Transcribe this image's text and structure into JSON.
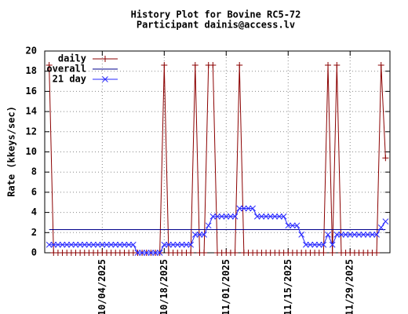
{
  "chart_data": {
    "type": "line",
    "title": "History Plot for Bovine RC5-72",
    "subtitle": "Participant dainis@access.lv",
    "y_label": "Rate (kkeys/sec)",
    "x": [
      "2025-09-22",
      "2025-09-23",
      "2025-09-24",
      "2025-09-25",
      "2025-09-26",
      "2025-09-27",
      "2025-09-28",
      "2025-09-29",
      "2025-09-30",
      "2025-10-01",
      "2025-10-02",
      "2025-10-03",
      "2025-10-04",
      "2025-10-05",
      "2025-10-06",
      "2025-10-07",
      "2025-10-08",
      "2025-10-09",
      "2025-10-10",
      "2025-10-11",
      "2025-10-12",
      "2025-10-13",
      "2025-10-14",
      "2025-10-15",
      "2025-10-16",
      "2025-10-17",
      "2025-10-18",
      "2025-10-19",
      "2025-10-20",
      "2025-10-21",
      "2025-10-22",
      "2025-10-23",
      "2025-10-24",
      "2025-10-25",
      "2025-10-26",
      "2025-10-27",
      "2025-10-28",
      "2025-10-29",
      "2025-10-30",
      "2025-10-31",
      "2025-11-01",
      "2025-11-02",
      "2025-11-03",
      "2025-11-04",
      "2025-11-05",
      "2025-11-06",
      "2025-11-07",
      "2025-11-08",
      "2025-11-09",
      "2025-11-10",
      "2025-11-11",
      "2025-11-12",
      "2025-11-13",
      "2025-11-14",
      "2025-11-15",
      "2025-11-16",
      "2025-11-17",
      "2025-11-18",
      "2025-11-19",
      "2025-11-20",
      "2025-11-21",
      "2025-11-22",
      "2025-11-23",
      "2025-11-24",
      "2025-11-25",
      "2025-11-26",
      "2025-11-27",
      "2025-11-28",
      "2025-11-29",
      "2025-11-30",
      "2025-12-01",
      "2025-12-02",
      "2025-12-03",
      "2025-12-04",
      "2025-12-05",
      "2025-12-06",
      "2025-12-07"
    ],
    "series": [
      {
        "name": "daily",
        "color": "#8b0000",
        "marker": "plus",
        "values": [
          18.6,
          0,
          0,
          0,
          0,
          0,
          0,
          0,
          0,
          0,
          0,
          0,
          0,
          0,
          0,
          0,
          0,
          0,
          0,
          0,
          0,
          0,
          0,
          0,
          0,
          0,
          18.6,
          0,
          0,
          0,
          0,
          0,
          0,
          18.6,
          0,
          0,
          18.6,
          18.6,
          0,
          0,
          0,
          0,
          0,
          18.6,
          0,
          0,
          0,
          0,
          0,
          0,
          0,
          0,
          0,
          0,
          0,
          0,
          0,
          0,
          0,
          0,
          0,
          0,
          0,
          18.6,
          0,
          18.6,
          0,
          0,
          0,
          0,
          0,
          0,
          0,
          0,
          0,
          18.6,
          9.4
        ]
      },
      {
        "name": "overall",
        "color": "#00008b",
        "marker": "none",
        "values": [
          2.3,
          2.3,
          2.3,
          2.3,
          2.3,
          2.3,
          2.3,
          2.3,
          2.3,
          2.3,
          2.3,
          2.3,
          2.3,
          2.3,
          2.3,
          2.3,
          2.3,
          2.3,
          2.3,
          2.3,
          2.3,
          2.3,
          2.3,
          2.3,
          2.3,
          2.3,
          2.3,
          2.3,
          2.3,
          2.3,
          2.3,
          2.3,
          2.3,
          2.3,
          2.3,
          2.3,
          2.3,
          2.3,
          2.3,
          2.3,
          2.3,
          2.3,
          2.3,
          2.3,
          2.3,
          2.3,
          2.3,
          2.3,
          2.3,
          2.3,
          2.3,
          2.3,
          2.3,
          2.3,
          2.3,
          2.3,
          2.3,
          2.3,
          2.3,
          2.3,
          2.3,
          2.3,
          2.3,
          2.3,
          2.3,
          2.3,
          2.3,
          2.3,
          2.3,
          2.3,
          2.3,
          2.3,
          2.3,
          2.3,
          2.3,
          2.3,
          2.3
        ]
      },
      {
        "name": "21 day",
        "color": "#2a2aff",
        "marker": "cross",
        "values": [
          0.8,
          0.8,
          0.8,
          0.8,
          0.8,
          0.8,
          0.8,
          0.8,
          0.8,
          0.8,
          0.8,
          0.8,
          0.8,
          0.8,
          0.8,
          0.8,
          0.8,
          0.8,
          0.8,
          0.8,
          0,
          0,
          0,
          0,
          0,
          0,
          0.8,
          0.8,
          0.8,
          0.8,
          0.8,
          0.8,
          0.8,
          1.8,
          1.8,
          1.8,
          2.7,
          3.6,
          3.6,
          3.6,
          3.6,
          3.6,
          3.6,
          4.4,
          4.4,
          4.4,
          4.4,
          3.6,
          3.6,
          3.6,
          3.6,
          3.6,
          3.6,
          3.6,
          2.7,
          2.7,
          2.7,
          1.8,
          0.8,
          0.8,
          0.8,
          0.8,
          0.8,
          1.8,
          0.8,
          1.8,
          1.8,
          1.8,
          1.8,
          1.8,
          1.8,
          1.8,
          1.8,
          1.8,
          1.8,
          2.5,
          3.1
        ]
      }
    ],
    "xlim": [
      "2025-09-21",
      "2025-12-08"
    ],
    "xticks": [
      {
        "value": "2025-10-04",
        "label": "10/04/2025"
      },
      {
        "value": "2025-10-18",
        "label": "10/18/2025"
      },
      {
        "value": "2025-11-01",
        "label": "11/01/2025"
      },
      {
        "value": "2025-11-15",
        "label": "11/15/2025"
      },
      {
        "value": "2025-11-29",
        "label": "11/29/2025"
      }
    ],
    "ylim": [
      0,
      20
    ],
    "yticks": [
      0,
      2,
      4,
      6,
      8,
      10,
      12,
      14,
      16,
      18,
      20
    ],
    "grid": true,
    "legend": "top-left"
  }
}
